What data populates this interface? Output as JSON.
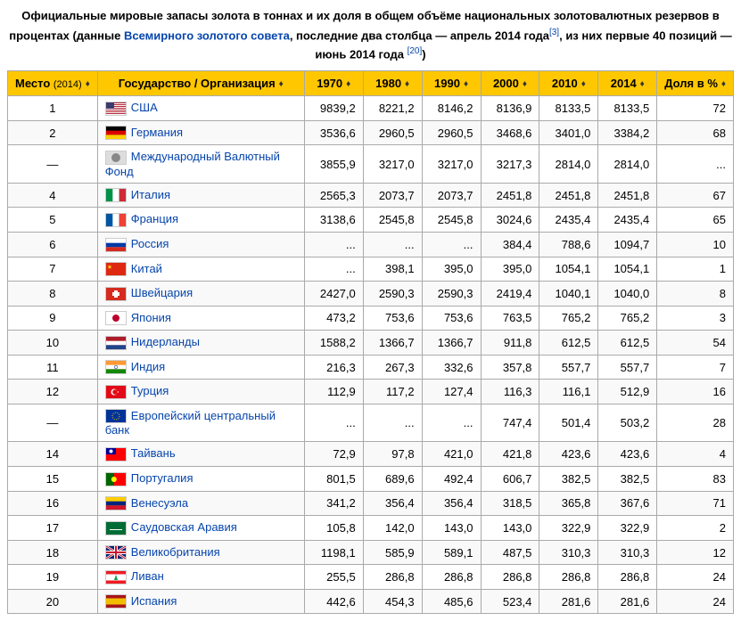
{
  "caption": {
    "part1": "Официальные мировые запасы золота в тоннах и их доля в общем объёме национальных золотовалютных резервов в процентах (данные ",
    "link1": "Всемирного золотого совета",
    "part2": ", последние два столбца — апрель 2014 года",
    "ref1": "[3]",
    "part3": ", из них первые 40 позиций — июнь 2014 года ",
    "ref2": "[20]",
    "part4": ")"
  },
  "headers": {
    "rank": "Место",
    "rank_year": "(2014)",
    "country": "Государство / Организация",
    "y1970": "1970",
    "y1980": "1980",
    "y1990": "1990",
    "y2000": "2000",
    "y2010": "2010",
    "y2014": "2014",
    "share": "Доля в %"
  },
  "rows": [
    {
      "rank": "1",
      "flag": "us",
      "name": "США",
      "y1970": "9839,2",
      "y1980": "8221,2",
      "y1990": "8146,2",
      "y2000": "8136,9",
      "y2010": "8133,5",
      "y2014": "8133,5",
      "share": "72"
    },
    {
      "rank": "2",
      "flag": "de",
      "name": "Германия",
      "y1970": "3536,6",
      "y1980": "2960,5",
      "y1990": "2960,5",
      "y2000": "3468,6",
      "y2010": "3401,0",
      "y2014": "3384,2",
      "share": "68"
    },
    {
      "rank": "—",
      "flag": "imf",
      "name": "Международный Валютный Фонд",
      "y1970": "3855,9",
      "y1980": "3217,0",
      "y1990": "3217,0",
      "y2000": "3217,3",
      "y2010": "2814,0",
      "y2014": "2814,0",
      "share": "..."
    },
    {
      "rank": "4",
      "flag": "it",
      "name": "Италия",
      "y1970": "2565,3",
      "y1980": "2073,7",
      "y1990": "2073,7",
      "y2000": "2451,8",
      "y2010": "2451,8",
      "y2014": "2451,8",
      "share": "67"
    },
    {
      "rank": "5",
      "flag": "fr",
      "name": "Франция",
      "y1970": "3138,6",
      "y1980": "2545,8",
      "y1990": "2545,8",
      "y2000": "3024,6",
      "y2010": "2435,4",
      "y2014": "2435,4",
      "share": "65"
    },
    {
      "rank": "6",
      "flag": "ru",
      "name": "Россия",
      "y1970": "...",
      "y1980": "...",
      "y1990": "...",
      "y2000": "384,4",
      "y2010": "788,6",
      "y2014": "1094,7",
      "share": "10"
    },
    {
      "rank": "7",
      "flag": "cn",
      "name": "Китай",
      "y1970": "...",
      "y1980": "398,1",
      "y1990": "395,0",
      "y2000": "395,0",
      "y2010": "1054,1",
      "y2014": "1054,1",
      "share": "1"
    },
    {
      "rank": "8",
      "flag": "ch",
      "name": "Швейцария",
      "y1970": "2427,0",
      "y1980": "2590,3",
      "y1990": "2590,3",
      "y2000": "2419,4",
      "y2010": "1040,1",
      "y2014": "1040,0",
      "share": "8"
    },
    {
      "rank": "9",
      "flag": "jp",
      "name": "Япония",
      "y1970": "473,2",
      "y1980": "753,6",
      "y1990": "753,6",
      "y2000": "763,5",
      "y2010": "765,2",
      "y2014": "765,2",
      "share": "3"
    },
    {
      "rank": "10",
      "flag": "nl",
      "name": "Нидерланды",
      "y1970": "1588,2",
      "y1980": "1366,7",
      "y1990": "1366,7",
      "y2000": "911,8",
      "y2010": "612,5",
      "y2014": "612,5",
      "share": "54"
    },
    {
      "rank": "11",
      "flag": "in",
      "name": "Индия",
      "y1970": "216,3",
      "y1980": "267,3",
      "y1990": "332,6",
      "y2000": "357,8",
      "y2010": "557,7",
      "y2014": "557,7",
      "share": "7"
    },
    {
      "rank": "12",
      "flag": "tr",
      "name": "Турция",
      "y1970": "112,9",
      "y1980": "117,2",
      "y1990": "127,4",
      "y2000": "116,3",
      "y2010": "116,1",
      "y2014": "512,9",
      "share": "16"
    },
    {
      "rank": "—",
      "flag": "eu",
      "name": "Европейский центральный банк",
      "y1970": "...",
      "y1980": "...",
      "y1990": "...",
      "y2000": "747,4",
      "y2010": "501,4",
      "y2014": "503,2",
      "share": "28"
    },
    {
      "rank": "14",
      "flag": "tw",
      "name": "Тайвань",
      "y1970": "72,9",
      "y1980": "97,8",
      "y1990": "421,0",
      "y2000": "421,8",
      "y2010": "423,6",
      "y2014": "423,6",
      "share": "4"
    },
    {
      "rank": "15",
      "flag": "pt",
      "name": "Португалия",
      "y1970": "801,5",
      "y1980": "689,6",
      "y1990": "492,4",
      "y2000": "606,7",
      "y2010": "382,5",
      "y2014": "382,5",
      "share": "83"
    },
    {
      "rank": "16",
      "flag": "ve",
      "name": "Венесуэла",
      "y1970": "341,2",
      "y1980": "356,4",
      "y1990": "356,4",
      "y2000": "318,5",
      "y2010": "365,8",
      "y2014": "367,6",
      "share": "71"
    },
    {
      "rank": "17",
      "flag": "sa",
      "name": "Саудовская Аравия",
      "y1970": "105,8",
      "y1980": "142,0",
      "y1990": "143,0",
      "y2000": "143,0",
      "y2010": "322,9",
      "y2014": "322,9",
      "share": "2"
    },
    {
      "rank": "18",
      "flag": "gb",
      "name": "Великобритания",
      "y1970": "1198,1",
      "y1980": "585,9",
      "y1990": "589,1",
      "y2000": "487,5",
      "y2010": "310,3",
      "y2014": "310,3",
      "share": "12"
    },
    {
      "rank": "19",
      "flag": "lb",
      "name": "Ливан",
      "y1970": "255,5",
      "y1980": "286,8",
      "y1990": "286,8",
      "y2000": "286,8",
      "y2010": "286,8",
      "y2014": "286,8",
      "share": "24"
    },
    {
      "rank": "20",
      "flag": "es",
      "name": "Испания",
      "y1970": "442,6",
      "y1980": "454,3",
      "y1990": "485,6",
      "y2000": "523,4",
      "y2010": "281,6",
      "y2014": "281,6",
      "share": "24"
    }
  ],
  "flags": {
    "us": {
      "svg": "<rect width='22' height='14' fill='#b22234'/><rect y='1' width='22' height='1' fill='#fff'/><rect y='3' width='22' height='1' fill='#fff'/><rect y='5' width='22' height='1' fill='#fff'/><rect y='7' width='22' height='1' fill='#fff'/><rect y='9' width='22' height='1' fill='#fff'/><rect y='11' width='22' height='1' fill='#fff'/><rect y='13' width='22' height='1' fill='#fff'/><rect width='9' height='7' fill='#3c3b6e'/>"
    },
    "de": {
      "svg": "<rect width='22' height='14' fill='#000'/><rect y='4.67' width='22' height='4.67' fill='#dd0000'/><rect y='9.33' width='22' height='4.67' fill='#ffce00'/>"
    },
    "imf": {
      "svg": "<rect width='22' height='14' fill='#ddd'/><circle cx='11' cy='7' r='5' fill='#888'/>"
    },
    "it": {
      "svg": "<rect width='22' height='14' fill='#009246'/><rect x='7.33' width='7.33' height='14' fill='#fff'/><rect x='14.67' width='7.33' height='14' fill='#ce2b37'/>"
    },
    "fr": {
      "svg": "<rect width='22' height='14' fill='#0055a4'/><rect x='7.33' width='7.33' height='14' fill='#fff'/><rect x='14.67' width='7.33' height='14' fill='#ef4135'/>"
    },
    "ru": {
      "svg": "<rect width='22' height='14' fill='#fff'/><rect y='4.67' width='22' height='4.67' fill='#0039a6'/><rect y='9.33' width='22' height='4.67' fill='#d52b1e'/>"
    },
    "cn": {
      "svg": "<rect width='22' height='14' fill='#de2910'/><polygon points='4,2 4.6,3.8 6.5,3.8 5,5 5.5,6.8 4,5.7 2.5,6.8 3,5 1.5,3.8 3.4,3.8' fill='#ffde00'/>"
    },
    "ch": {
      "svg": "<rect width='22' height='14' fill='#d52b1e'/><rect x='9' y='3' width='4' height='8' fill='#fff'/><rect x='7' y='5' width='8' height='4' fill='#fff'/>"
    },
    "jp": {
      "svg": "<rect width='22' height='14' fill='#fff'/><circle cx='11' cy='7' r='4' fill='#bc002d'/>"
    },
    "nl": {
      "svg": "<rect width='22' height='14' fill='#ae1c28'/><rect y='4.67' width='22' height='4.67' fill='#fff'/><rect y='9.33' width='22' height='4.67' fill='#21468b'/>"
    },
    "in": {
      "svg": "<rect width='22' height='14' fill='#ff9933'/><rect y='4.67' width='22' height='4.67' fill='#fff'/><rect y='9.33' width='22' height='4.67' fill='#138808'/><circle cx='11' cy='7' r='1.8' fill='none' stroke='#000080' stroke-width='0.5'/>"
    },
    "tr": {
      "svg": "<rect width='22' height='14' fill='#e30a17'/><circle cx='9' cy='7' r='3.5' fill='#fff'/><circle cx='10' cy='7' r='2.8' fill='#e30a17'/><polygon points='12,7 14,6 13,8 13,6 14,8' fill='#fff'/>"
    },
    "eu": {
      "svg": "<rect width='22' height='14' fill='#003399'/><circle cx='11' cy='7' r='4' fill='none' stroke='#ffcc00' stroke-width='1' stroke-dasharray='1,1.5'/>"
    },
    "tw": {
      "svg": "<rect width='22' height='14' fill='#fe0000'/><rect width='11' height='7' fill='#000095'/><circle cx='5.5' cy='3.5' r='2' fill='#fff'/>"
    },
    "pt": {
      "svg": "<rect width='22' height='14' fill='#006600'/><rect x='8.8' width='13.2' height='14' fill='#ff0000'/><circle cx='8.8' cy='7' r='3' fill='#ffff00'/>"
    },
    "ve": {
      "svg": "<rect width='22' height='14' fill='#ffcc00'/><rect y='4.67' width='22' height='4.67' fill='#00247d'/><rect y='9.33' width='22' height='4.67' fill='#cf142b'/>"
    },
    "sa": {
      "svg": "<rect width='22' height='14' fill='#006c35'/><rect x='4' y='8' width='14' height='1' fill='#fff'/>"
    },
    "gb": {
      "svg": "<rect width='22' height='14' fill='#012169'/><path d='M0,0 L22,14 M22,0 L0,14' stroke='#fff' stroke-width='2.5'/><path d='M0,0 L22,14 M22,0 L0,14' stroke='#c8102e' stroke-width='1'/><rect x='9' width='4' height='14' fill='#fff'/><rect y='5' width='22' height='4' fill='#fff'/><rect x='10' width='2' height='14' fill='#c8102e'/><rect y='6' width='22' height='2' fill='#c8102e'/>"
    },
    "lb": {
      "svg": "<rect width='22' height='14' fill='#ed1c24'/><rect y='3.5' width='22' height='7' fill='#fff'/><polygon points='11,4 13,10 9,10' fill='#00a651'/>"
    },
    "es": {
      "svg": "<rect width='22' height='14' fill='#aa151b'/><rect y='3.5' width='22' height='7' fill='#f1bf00'/>"
    }
  },
  "style": {
    "header_bg": "#ffc700",
    "link_color": "#0645ad",
    "border_color": "#aaa",
    "row_bg": "#f9f9f9",
    "font_size": 13
  }
}
